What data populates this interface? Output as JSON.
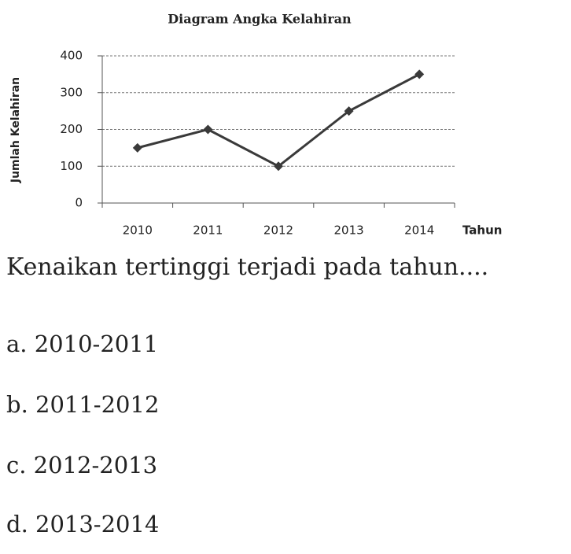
{
  "chart_data": {
    "type": "line",
    "title": "Diagram Angka Kelahiran",
    "y_label": "Jumlah Kelahiran",
    "x_label": "Tahun",
    "categories": [
      "2010",
      "2011",
      "2012",
      "2013",
      "2014"
    ],
    "values": [
      150,
      200,
      100,
      250,
      350
    ],
    "color": "#3a3a3a",
    "ylim": [
      0,
      400
    ],
    "yticks": [
      0,
      100,
      200,
      300,
      400
    ],
    "grid": true
  },
  "question": "Kenaikan tertinggi terjadi pada tahun....",
  "options": [
    "a. 2010-2011",
    "b. 2011-2012",
    "c. 2012-2013",
    "d. 2013-2014"
  ]
}
